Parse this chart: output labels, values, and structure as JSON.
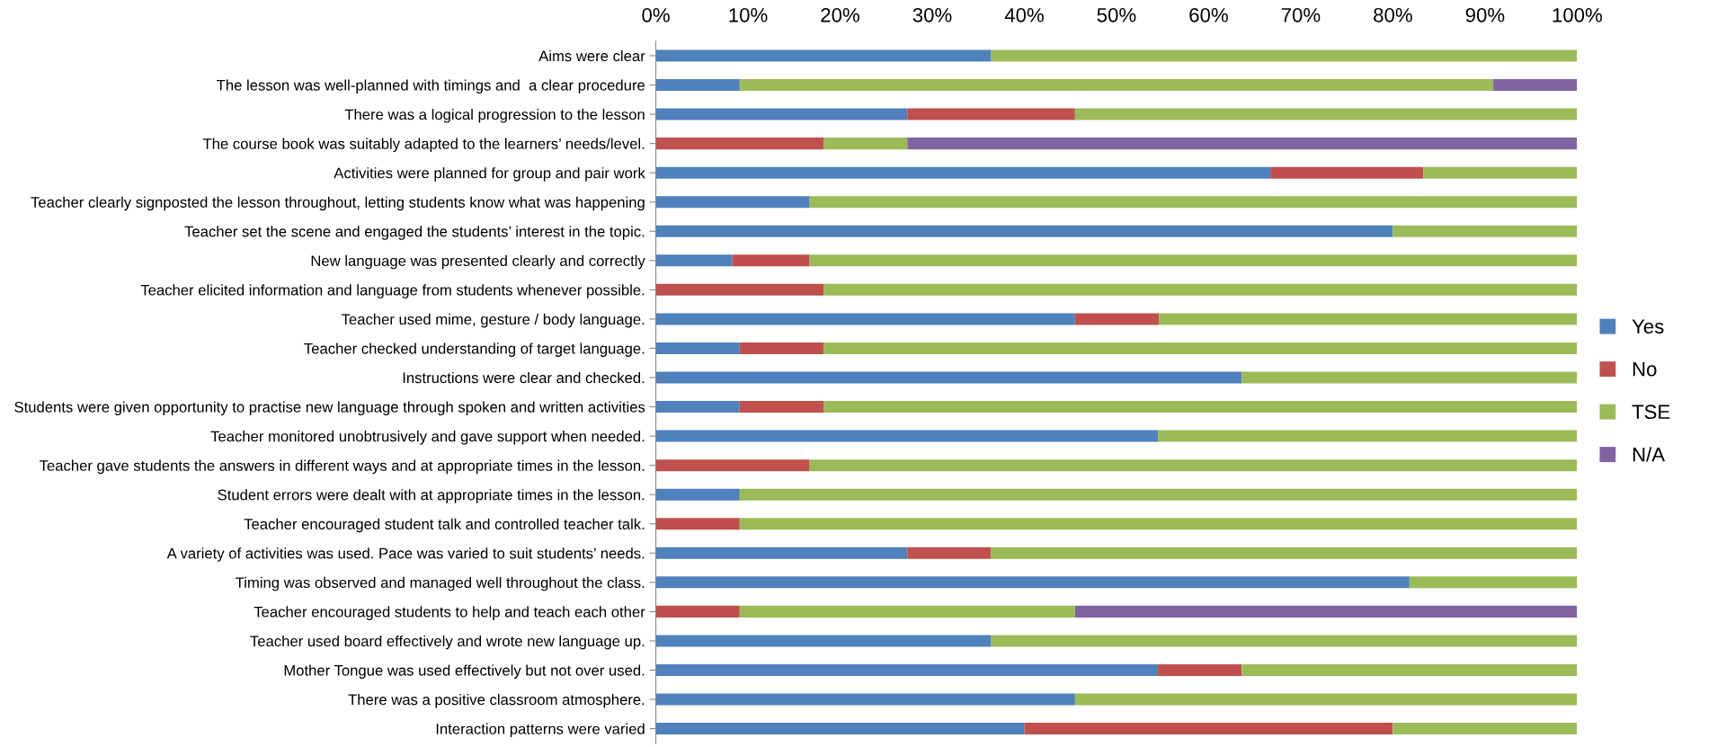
{
  "chart_data": {
    "type": "bar",
    "orientation": "horizontal",
    "stacked": true,
    "categories": [
      "Aims were clear",
      "The lesson was well-planned with timings and  a clear procedure",
      "There was a logical progression to the lesson",
      "The course book was suitably adapted to the learners’ needs/level.",
      "Activities were planned for group and pair work",
      "Teacher clearly signposted the lesson throughout, letting students know what was happening",
      "Teacher set the scene and engaged the students’ interest in the topic.",
      "New language was presented clearly and correctly",
      "Teacher elicited information and language from students whenever possible.",
      "Teacher used mime, gesture / body language.",
      "Teacher checked understanding of target language.",
      "Instructions were clear and checked.",
      "Students were given opportunity to practise new language through spoken and written activities",
      "Teacher monitored unobtrusively and gave support when needed.",
      "Teacher gave students the answers in different ways and at appropriate times in the lesson.",
      "Student errors were dealt with at appropriate times in the lesson.",
      "Teacher encouraged student talk and controlled teacher talk.",
      "A variety of activities was used. Pace was varied to suit students’ needs.",
      "Timing was observed and managed well throughout the class.",
      "Teacher encouraged students to help and teach each other",
      "Teacher used board effectively and wrote new language up.",
      "Mother Tongue was used effectively but not over used.",
      "There was a positive classroom atmosphere.",
      "Interaction patterns were varied"
    ],
    "series": [
      {
        "name": "Yes",
        "color": "#4f81bd",
        "values": [
          36.4,
          9.1,
          27.3,
          0,
          66.7,
          16.7,
          80,
          8.3,
          0,
          45.5,
          9.1,
          63.6,
          9.1,
          54.5,
          0,
          9.1,
          0,
          27.3,
          81.8,
          0,
          36.4,
          54.5,
          45.5,
          40
        ]
      },
      {
        "name": "No",
        "color": "#c0504d",
        "values": [
          0,
          0,
          18.2,
          18.2,
          16.6,
          0,
          0,
          8.4,
          18.2,
          9.1,
          9.1,
          0,
          9.1,
          0,
          16.7,
          0,
          9.1,
          9.1,
          0,
          9.1,
          0,
          9.1,
          0,
          40
        ]
      },
      {
        "name": "TSE",
        "color": "#9bbb59",
        "values": [
          63.6,
          81.8,
          54.5,
          9.1,
          16.7,
          83.3,
          20,
          83.3,
          81.8,
          45.4,
          81.8,
          36.4,
          81.8,
          45.5,
          83.3,
          90.9,
          90.9,
          63.6,
          18.2,
          36.4,
          63.6,
          36.4,
          54.5,
          20
        ]
      },
      {
        "name": "N/A",
        "color": "#8064a2",
        "values": [
          0,
          9.1,
          0,
          72.7,
          0,
          0,
          0,
          0,
          0,
          0,
          0,
          0,
          0,
          0,
          0,
          0,
          0,
          0,
          0,
          54.5,
          0,
          0,
          0,
          0
        ]
      }
    ],
    "xlim": [
      0,
      100
    ],
    "xticks": [
      {
        "value": 0,
        "label": "0%"
      },
      {
        "value": 10,
        "label": "10%"
      },
      {
        "value": 20,
        "label": "20%"
      },
      {
        "value": 30,
        "label": "30%"
      },
      {
        "value": 40,
        "label": "40%"
      },
      {
        "value": 50,
        "label": "50%"
      },
      {
        "value": 60,
        "label": "60%"
      },
      {
        "value": 70,
        "label": "70%"
      },
      {
        "value": 80,
        "label": "80%"
      },
      {
        "value": 90,
        "label": "90%"
      },
      {
        "value": 100,
        "label": "100%"
      }
    ],
    "grid": false,
    "legend": "right"
  }
}
